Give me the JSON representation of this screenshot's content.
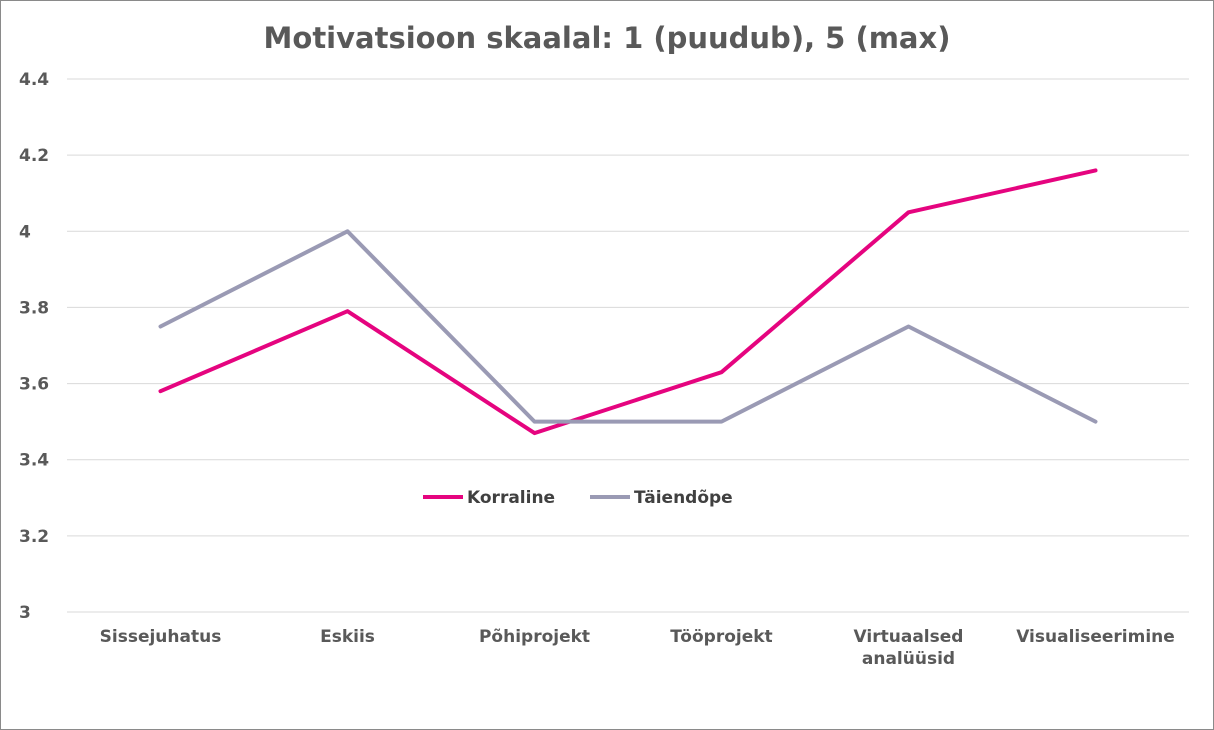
{
  "chart_data": {
    "type": "line",
    "title": "Motivatsioon skaalal: 1 (puudub), 5 (max)",
    "xlabel": "",
    "ylabel": "",
    "categories": [
      [
        "Sissejuhatus"
      ],
      [
        "Eskiis"
      ],
      [
        "Põhiprojekt"
      ],
      [
        "Tööprojekt"
      ],
      [
        "Virtuaalsed",
        "analüüsid"
      ],
      [
        "Visualiseerimine"
      ]
    ],
    "ylim": [
      3,
      4.4
    ],
    "yticks": [
      "3",
      "3.2",
      "3.4",
      "3.6",
      "3.8",
      "4",
      "4.2",
      "4.4"
    ],
    "grid": true,
    "legend_position": "center",
    "series": [
      {
        "name": "Korraline",
        "color": "#e5047f",
        "values": [
          3.58,
          3.79,
          3.47,
          3.63,
          4.05,
          4.16
        ]
      },
      {
        "name": "Täiendõpe",
        "color": "#9a9ab4",
        "values": [
          3.75,
          4.0,
          3.5,
          3.5,
          3.75,
          3.5
        ]
      }
    ]
  }
}
